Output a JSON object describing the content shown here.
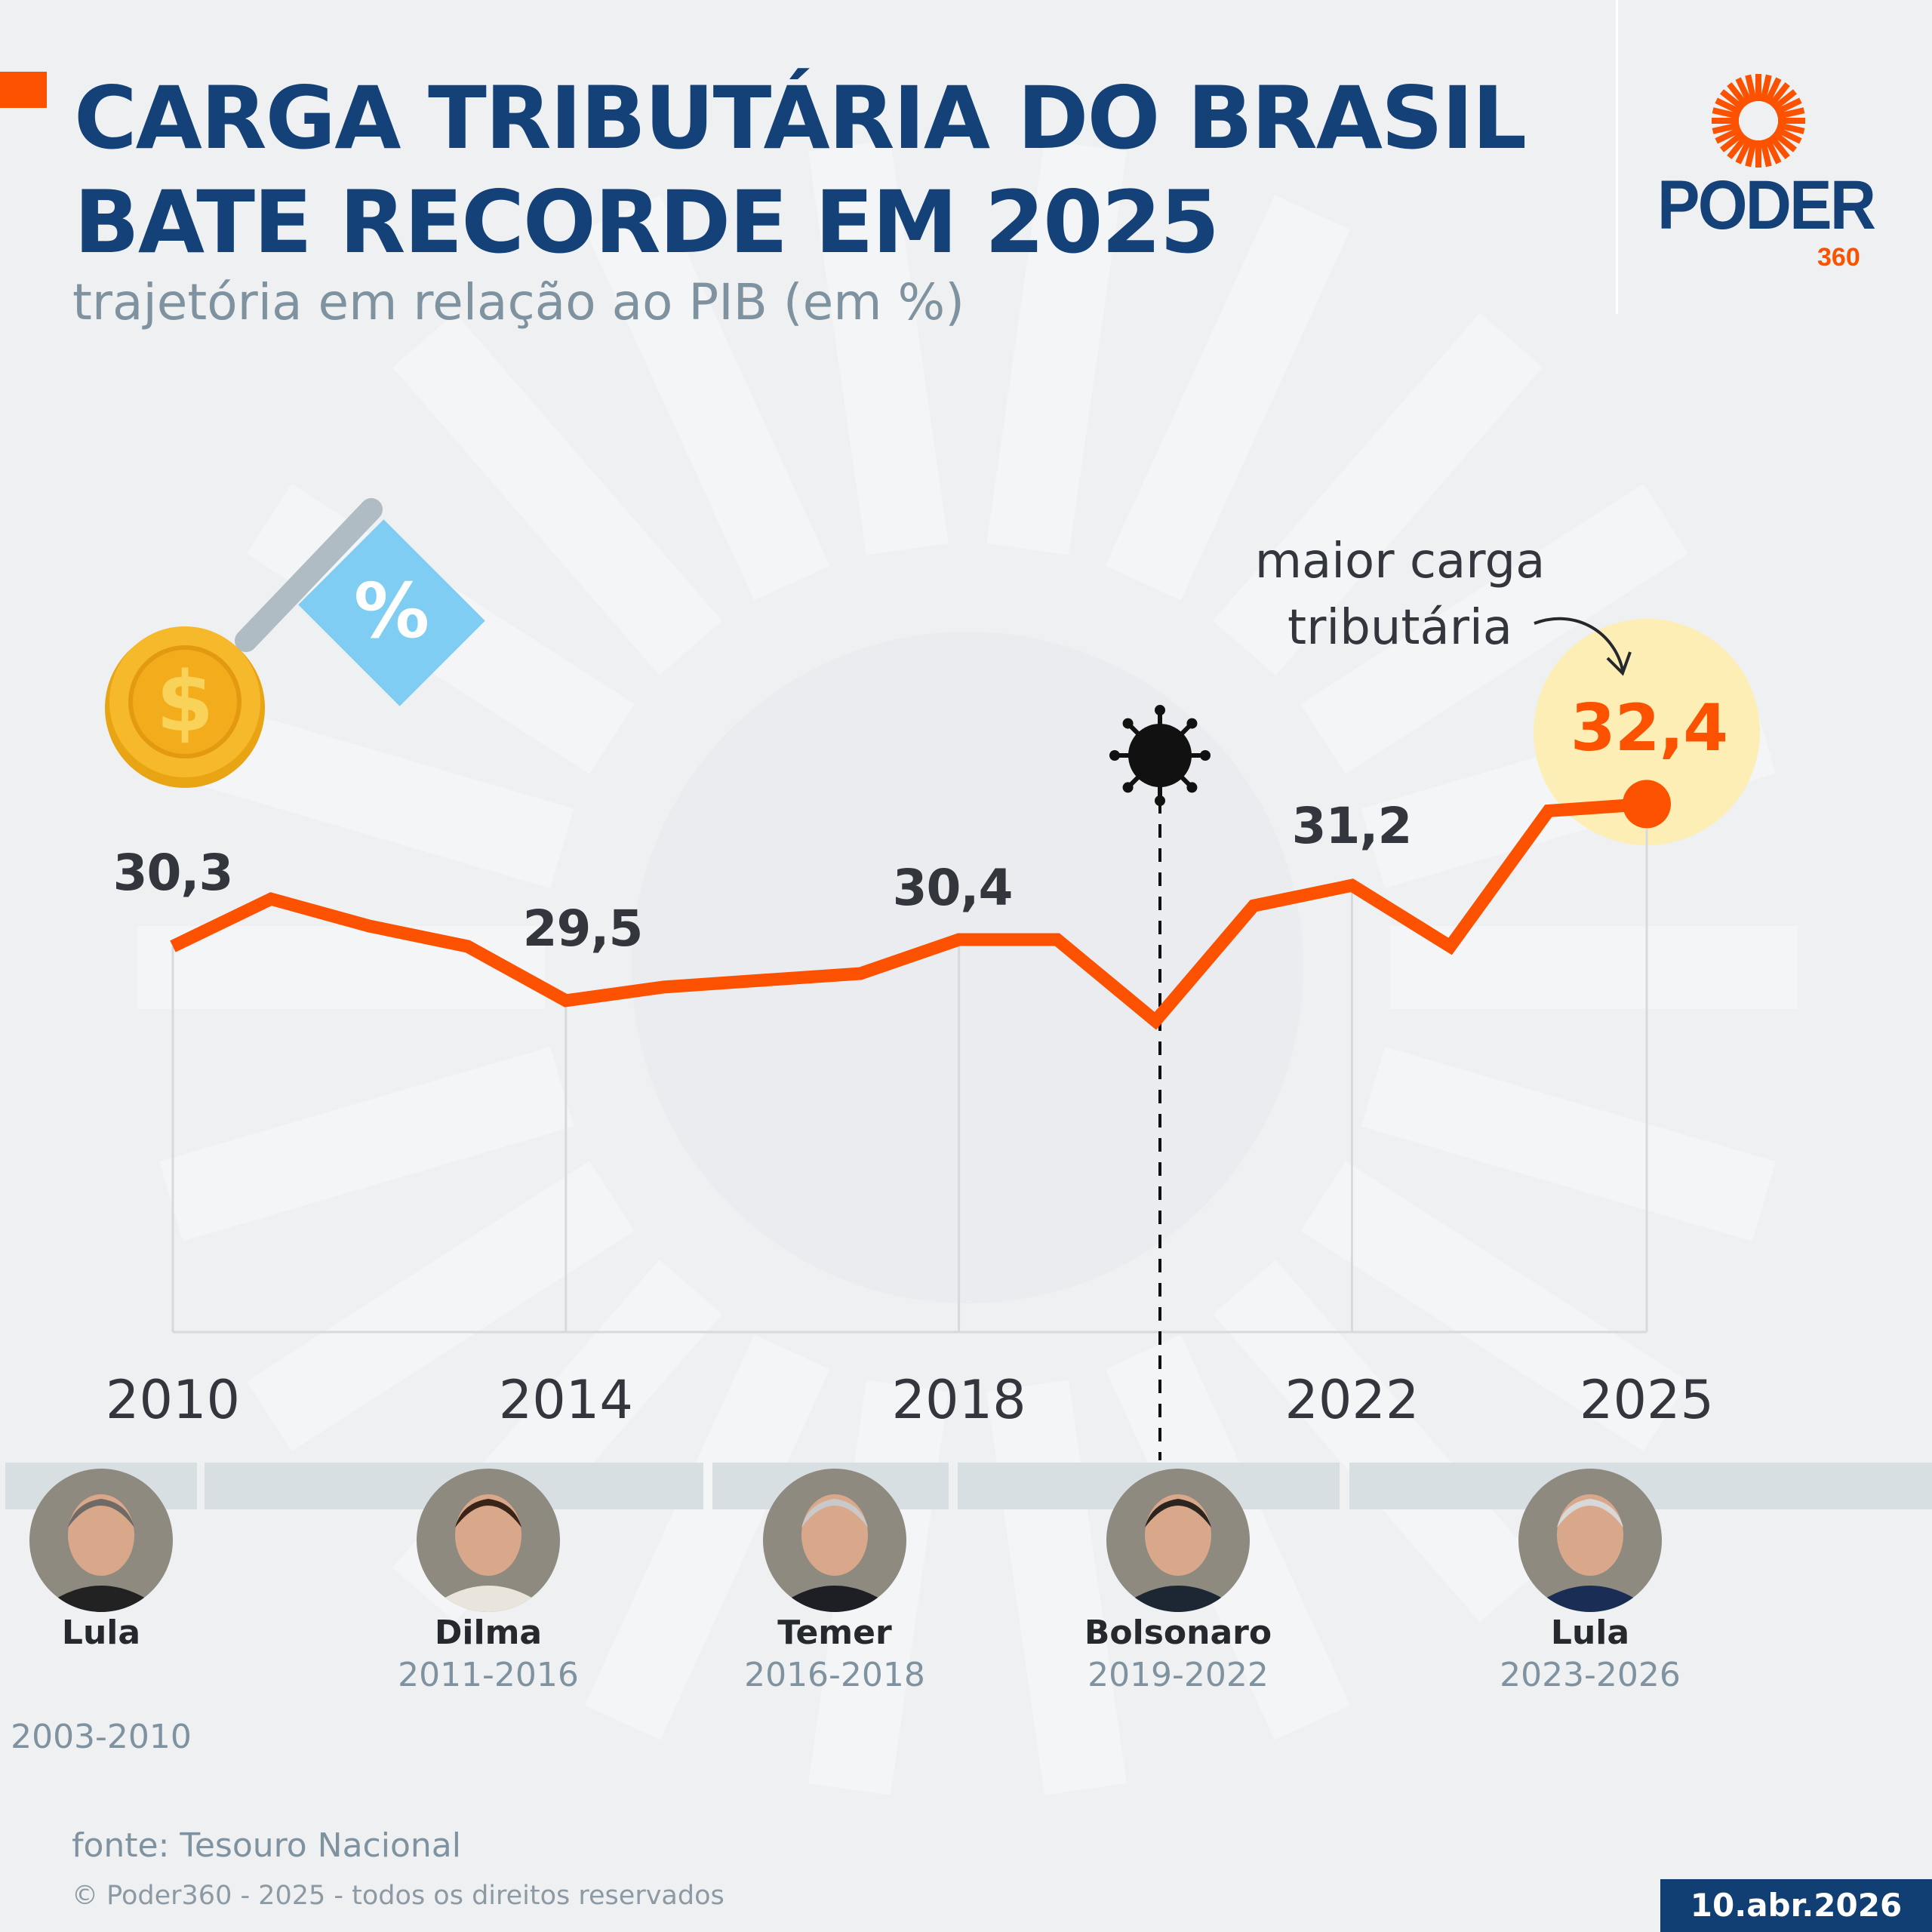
{
  "header": {
    "title_line1": "CARGA TRIBUTÁRIA DO BRASIL",
    "title_line2": "BATE RECORDE EM 2025",
    "subtitle": "trajetória em relação ao PIB (em %)"
  },
  "logo": {
    "name": "PODER",
    "suffix": "360"
  },
  "colors": {
    "title": "#134178",
    "line": "#fc5200",
    "highlight": "#fdeeb5",
    "muted": "#7f929f",
    "band": "#d8dfe3"
  },
  "chart_data": {
    "type": "line",
    "title": "CARGA TRIBUTÁRIA DO BRASIL BATE RECORDE EM 2025",
    "subtitle": "trajetória em relação ao PIB (em %)",
    "x": [
      2010,
      2011,
      2012,
      2013,
      2014,
      2015,
      2016,
      2017,
      2018,
      2019,
      2020,
      2021,
      2022,
      2023,
      2024,
      2025
    ],
    "values": [
      30.3,
      31.0,
      30.6,
      30.3,
      29.5,
      29.7,
      29.8,
      29.9,
      30.4,
      30.4,
      29.2,
      30.9,
      31.2,
      30.3,
      32.3,
      32.4
    ],
    "xticks": [
      "2010",
      "2014",
      "2018",
      "2022",
      "2025"
    ],
    "labels": [
      {
        "year": 2010,
        "text": "30,3"
      },
      {
        "year": 2014,
        "text": "29,5"
      },
      {
        "year": 2018,
        "text": "30,4"
      },
      {
        "year": 2022,
        "text": "31,2"
      },
      {
        "year": 2025,
        "text": "32,4"
      }
    ],
    "annotation": {
      "line1": "maior carga",
      "line2": "tributária",
      "year": 2025
    },
    "event_marker": {
      "year": 2020,
      "icon": "virus-icon"
    },
    "grid": false
  },
  "presidents": [
    {
      "name": "Lula",
      "term": "2003-2010"
    },
    {
      "name": "Dilma",
      "term": "2011-2016"
    },
    {
      "name": "Temer",
      "term": "2016-2018"
    },
    {
      "name": "Bolsonaro",
      "term": "2019-2022"
    },
    {
      "name": "Lula",
      "term": "2023-2026"
    }
  ],
  "footer": {
    "source": "fonte: Tesouro Nacional",
    "copyright": "© Poder360 - 2025 - todos os direitos reservados",
    "date": "10.abr.2026"
  }
}
